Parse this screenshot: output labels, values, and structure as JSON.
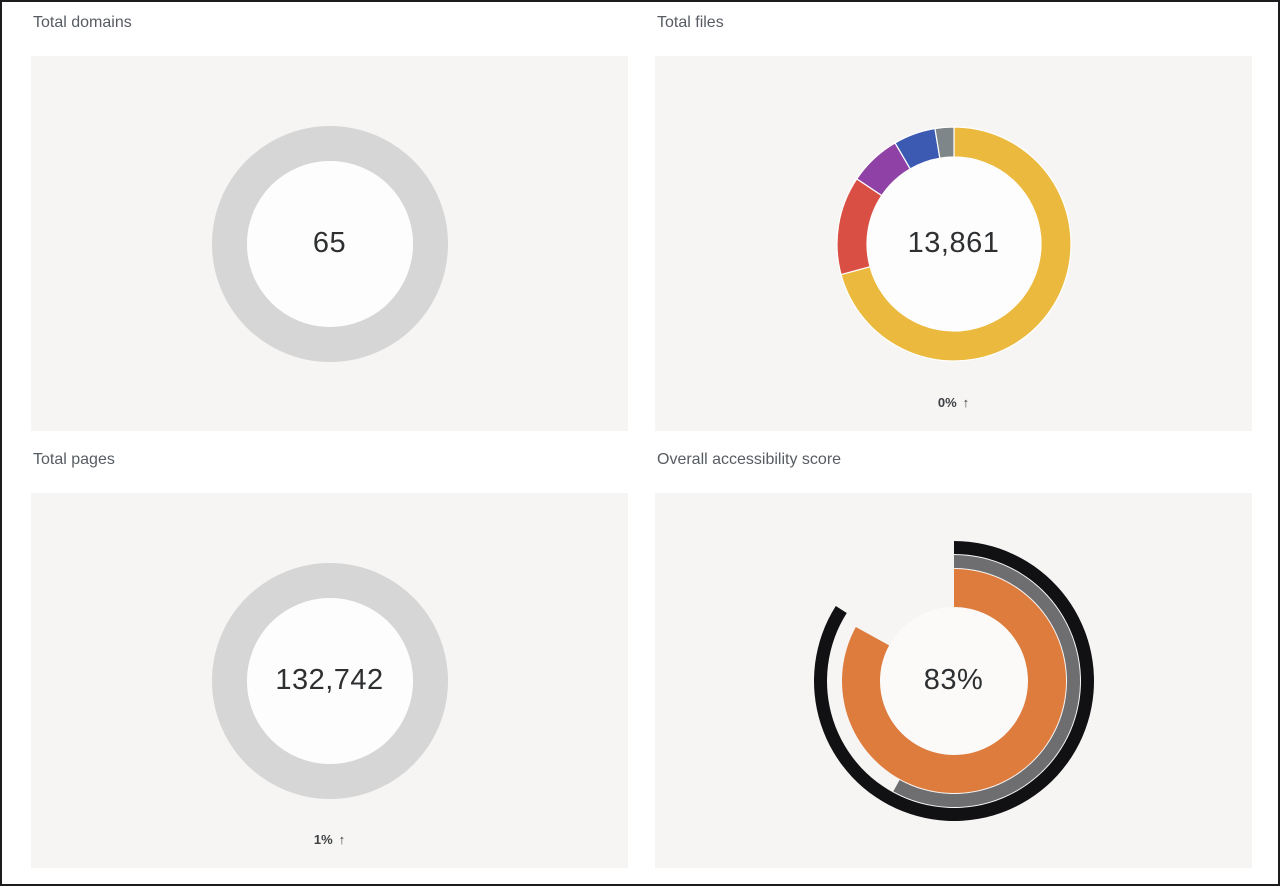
{
  "colors": {
    "frame_border": "#1c1c1e",
    "panel_bg": "#f6f5f4",
    "title": "#575c62",
    "value": "#2d2f31",
    "caption": "#3e4144",
    "page_bg": "#ffffff"
  },
  "chart_data": [
    {
      "type": "donut",
      "title": "Total domains",
      "center_label": "65",
      "outer_radius": 118,
      "thickness": 35,
      "hole_color": "#fdfdfd",
      "separator_color": "#ffffff",
      "legend": "none",
      "segments": [
        {
          "name": "total-domains",
          "value": 100,
          "color": "#d6d6d6"
        }
      ]
    },
    {
      "type": "donut",
      "title": "Total files",
      "center_label": "13,861",
      "caption_value": "0%",
      "caption_arrow": "↑",
      "outer_radius": 117,
      "thickness": 30,
      "hole_color": "#fdfdfd",
      "separator_color": "#ffffff",
      "legend": "none",
      "start_angle_deg": 0,
      "direction": "clockwise",
      "segments": [
        {
          "name": "files-segment-1",
          "value": 70.8,
          "color": "#ebb93d"
        },
        {
          "name": "files-segment-2",
          "value": 13.6,
          "color": "#d94f43"
        },
        {
          "name": "files-segment-3",
          "value": 7.2,
          "color": "#9041a6"
        },
        {
          "name": "files-segment-4",
          "value": 5.8,
          "color": "#3c5ab2"
        },
        {
          "name": "files-segment-5",
          "value": 2.6,
          "color": "#7f8689"
        }
      ]
    },
    {
      "type": "donut",
      "title": "Total pages",
      "center_label": "132,742",
      "caption_value": "1%",
      "caption_arrow": "↑",
      "outer_radius": 118,
      "thickness": 35,
      "hole_color": "#fdfdfd",
      "separator_color": "#ffffff",
      "legend": "none",
      "segments": [
        {
          "name": "total-pages",
          "value": 100,
          "color": "#d6d6d6"
        }
      ]
    },
    {
      "type": "gauge",
      "title": "Overall accessibility score",
      "center_label": "83%",
      "hole_color": "#fbfaf9",
      "start_angle_deg": 0,
      "direction": "clockwise",
      "rings": [
        {
          "name": "outer-black-ring",
          "percent": 84,
          "color": "#111113",
          "outer_radius": 140,
          "thickness": 13
        },
        {
          "name": "middle-gray-ring",
          "percent": 58,
          "color": "#6e6e70",
          "outer_radius": 126,
          "thickness": 13
        },
        {
          "name": "score-orange-ring",
          "percent": 83,
          "color": "#de7c3e",
          "outer_radius": 112,
          "thickness": 38
        }
      ]
    }
  ]
}
